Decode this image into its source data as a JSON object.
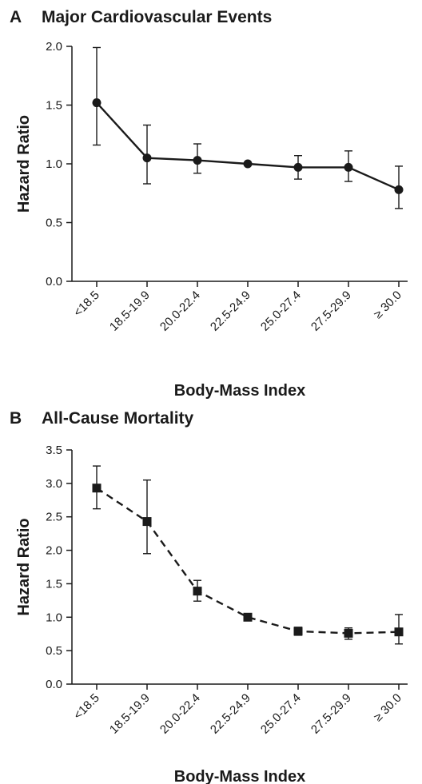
{
  "chart_data": [
    {
      "type": "line",
      "panel_letter": "A",
      "title": "Major Cardiovascular Events",
      "xlabel": "Body-Mass Index",
      "ylabel": "Hazard Ratio",
      "categories": [
        "<18.5",
        "18.5-19.9",
        "20.0-22.4",
        "22.5-24.9",
        "25.0-27.4",
        "27.5-29.9",
        "≥ 30.0"
      ],
      "ylim": [
        0,
        2.0
      ],
      "yticks": [
        "0.0",
        "0.5",
        "1.0",
        "1.5",
        "2.0"
      ],
      "marker": "circle",
      "line_style": "solid",
      "series": [
        {
          "values": [
            1.52,
            1.05,
            1.03,
            1.0,
            0.97,
            0.97,
            0.78
          ],
          "lower": [
            1.16,
            0.83,
            0.92,
            1.0,
            0.87,
            0.85,
            0.62
          ],
          "upper": [
            1.99,
            1.33,
            1.17,
            1.0,
            1.07,
            1.11,
            0.98
          ]
        }
      ]
    },
    {
      "type": "line",
      "panel_letter": "B",
      "title": "All-Cause Mortality",
      "xlabel": "Body-Mass Index",
      "ylabel": "Hazard Ratio",
      "categories": [
        "<18.5",
        "18.5-19.9",
        "20.0-22.4",
        "22.5-24.9",
        "25.0-27.4",
        "27.5-29.9",
        "≥ 30.0"
      ],
      "ylim": [
        0,
        3.5
      ],
      "yticks": [
        "0.0",
        "0.5",
        "1.0",
        "1.5",
        "2.0",
        "2.5",
        "3.0",
        "3.5"
      ],
      "marker": "square",
      "line_style": "dashed",
      "series": [
        {
          "values": [
            2.93,
            2.43,
            1.39,
            1.0,
            0.79,
            0.76,
            0.78
          ],
          "lower": [
            2.62,
            1.95,
            1.24,
            1.0,
            0.73,
            0.67,
            0.6
          ],
          "upper": [
            3.26,
            3.05,
            1.55,
            1.0,
            0.85,
            0.84,
            1.04
          ]
        }
      ]
    }
  ]
}
